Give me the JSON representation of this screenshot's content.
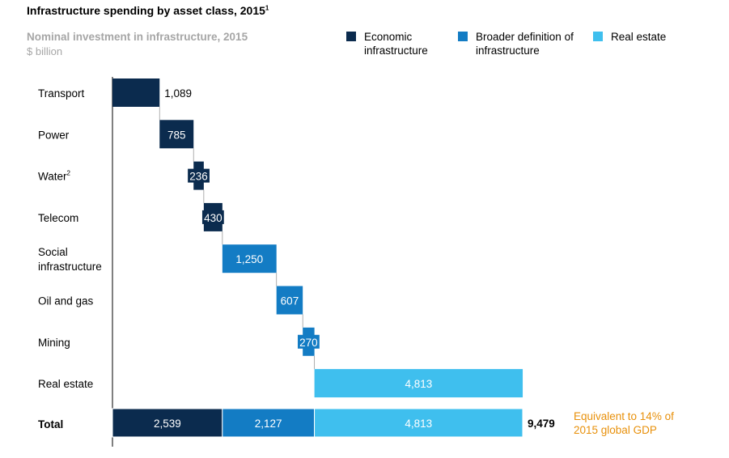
{
  "title": "Infrastructure spending by asset class, 2015",
  "title_footnote": "1",
  "subtitle": "Nominal investment in infrastructure, 2015",
  "unit": "$ billion",
  "colors": {
    "economic": "#0b2b4e",
    "broader": "#137cc4",
    "real_estate": "#3fbfee",
    "note": "#e8900a"
  },
  "legend": [
    {
      "label": "Economic infrastructure",
      "color": "#0b2b4e"
    },
    {
      "label": "Broader definition of infrastructure",
      "color": "#137cc4"
    },
    {
      "label": "Real estate",
      "color": "#3fbfee"
    }
  ],
  "note": "Equivalent to 14% of 2015 global GDP",
  "chart_data": {
    "type": "bar",
    "subtype": "waterfall",
    "title": "Infrastructure spending by asset class, 2015",
    "ylabel": "$ billion",
    "categories": [
      {
        "label": "Transport",
        "value": 1089,
        "display": "1,089",
        "group": "economic"
      },
      {
        "label": "Power",
        "value": 785,
        "display": "785",
        "group": "economic"
      },
      {
        "label": "Water",
        "footnote": "2",
        "value": 236,
        "display": "236",
        "group": "economic"
      },
      {
        "label": "Telecom",
        "value": 430,
        "display": "430",
        "group": "economic"
      },
      {
        "label": "Social infrastructure",
        "value": 1250,
        "display": "1,250",
        "group": "broader"
      },
      {
        "label": "Oil and gas",
        "value": 607,
        "display": "607",
        "group": "broader"
      },
      {
        "label": "Mining",
        "value": 270,
        "display": "270",
        "group": "broader"
      },
      {
        "label": "Real estate",
        "value": 4813,
        "display": "4,813",
        "group": "real_estate"
      }
    ],
    "total": {
      "label": "Total",
      "segments": [
        {
          "group": "economic",
          "value": 2539,
          "display": "2,539"
        },
        {
          "group": "broader",
          "value": 2127,
          "display": "2,127"
        },
        {
          "group": "real_estate",
          "value": 4813,
          "display": "4,813"
        }
      ],
      "value": 9479,
      "display": "9,479"
    }
  }
}
